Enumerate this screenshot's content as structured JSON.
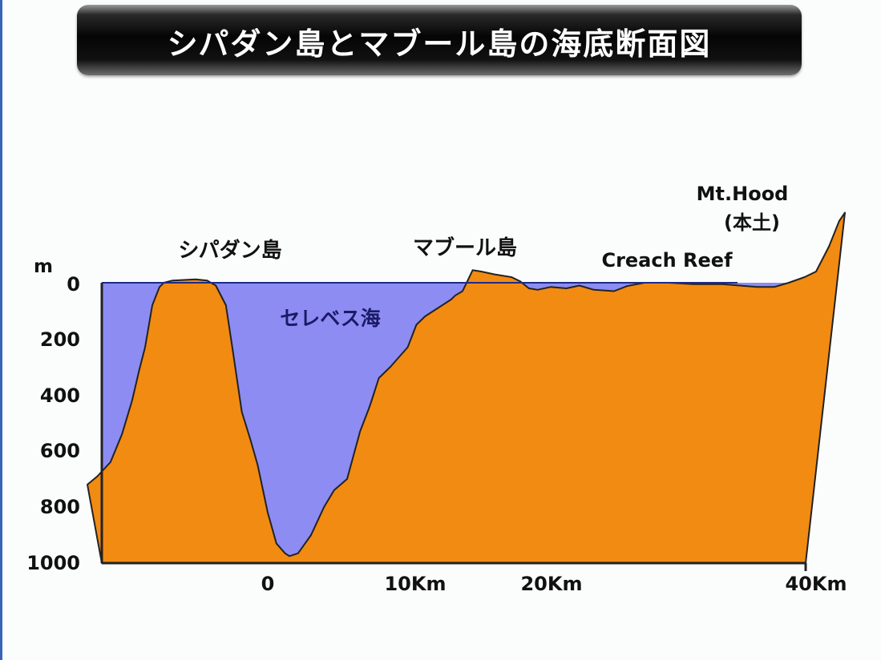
{
  "title": "シパダン島とマブール島の海底断面図",
  "chart_data": {
    "type": "area",
    "ylabel": "m",
    "y_ticks": [
      "0",
      "200",
      "400",
      "600",
      "800",
      "1000"
    ],
    "x_ticks": [
      "0",
      "10Km",
      "20Km",
      "40Km"
    ],
    "ylim": [
      0,
      1000
    ],
    "y_inverted": true,
    "series": [
      {
        "name": "seafloor",
        "x": [
          -12.5,
          -11.8,
          -10.9,
          -10.1,
          -9.4,
          -8.9,
          -8.5,
          -8.0,
          -7.5,
          -7.2,
          -6.6,
          -5.8,
          -5.0,
          -4.2,
          -3.6,
          -2.9,
          -2.4,
          -1.8,
          -1.2,
          -0.7,
          0.0,
          0.6,
          1.2,
          1.5,
          2.1,
          3.0,
          3.9,
          4.6,
          5.5,
          6.4,
          7.0,
          7.2,
          7.7,
          8.5,
          9.7,
          10.3,
          10.9,
          11.8,
          12.7,
          13.0,
          13.5,
          14.2,
          14.8,
          15.7,
          16.9,
          17.5,
          18.1,
          18.7,
          19.6,
          20.7,
          21.6,
          22.6,
          24.0,
          24.9,
          26.1,
          27.8,
          29.5,
          31.5,
          33.9,
          35.1,
          36.1,
          37.2,
          38.0,
          38.9,
          39.6,
          40.0
        ],
        "depth_m": [
          720,
          690,
          640,
          540,
          420,
          310,
          230,
          80,
          15,
          0,
          -8,
          -10,
          -12,
          -8,
          10,
          80,
          250,
          460,
          560,
          650,
          820,
          930,
          965,
          975,
          965,
          900,
          800,
          740,
          700,
          530,
          450,
          420,
          340,
          300,
          230,
          150,
          120,
          90,
          60,
          45,
          30,
          -45,
          -40,
          -30,
          -20,
          -5,
          20,
          25,
          15,
          20,
          10,
          25,
          30,
          12,
          0,
          0,
          5,
          5,
          15,
          15,
          0,
          -20,
          -40,
          -130,
          -220,
          -250
        ]
      },
      {
        "name": "sea",
        "surface_m": 0
      }
    ],
    "annotations": [
      {
        "text": "シパダン島",
        "x": -5.0
      },
      {
        "text": "マブール島",
        "x": 15.0
      },
      {
        "text": "Creach Reef",
        "x": 33.5
      },
      {
        "text": "Mt.Hood",
        "x": 38.4
      },
      {
        "text": "(本土)",
        "x": 38.4
      },
      {
        "text": "セレベス海",
        "x": 7.5
      }
    ],
    "colors": {
      "land": "#f28b12",
      "sea": "#8c8cf2",
      "outline": "#222222",
      "axis": "#222222"
    }
  }
}
